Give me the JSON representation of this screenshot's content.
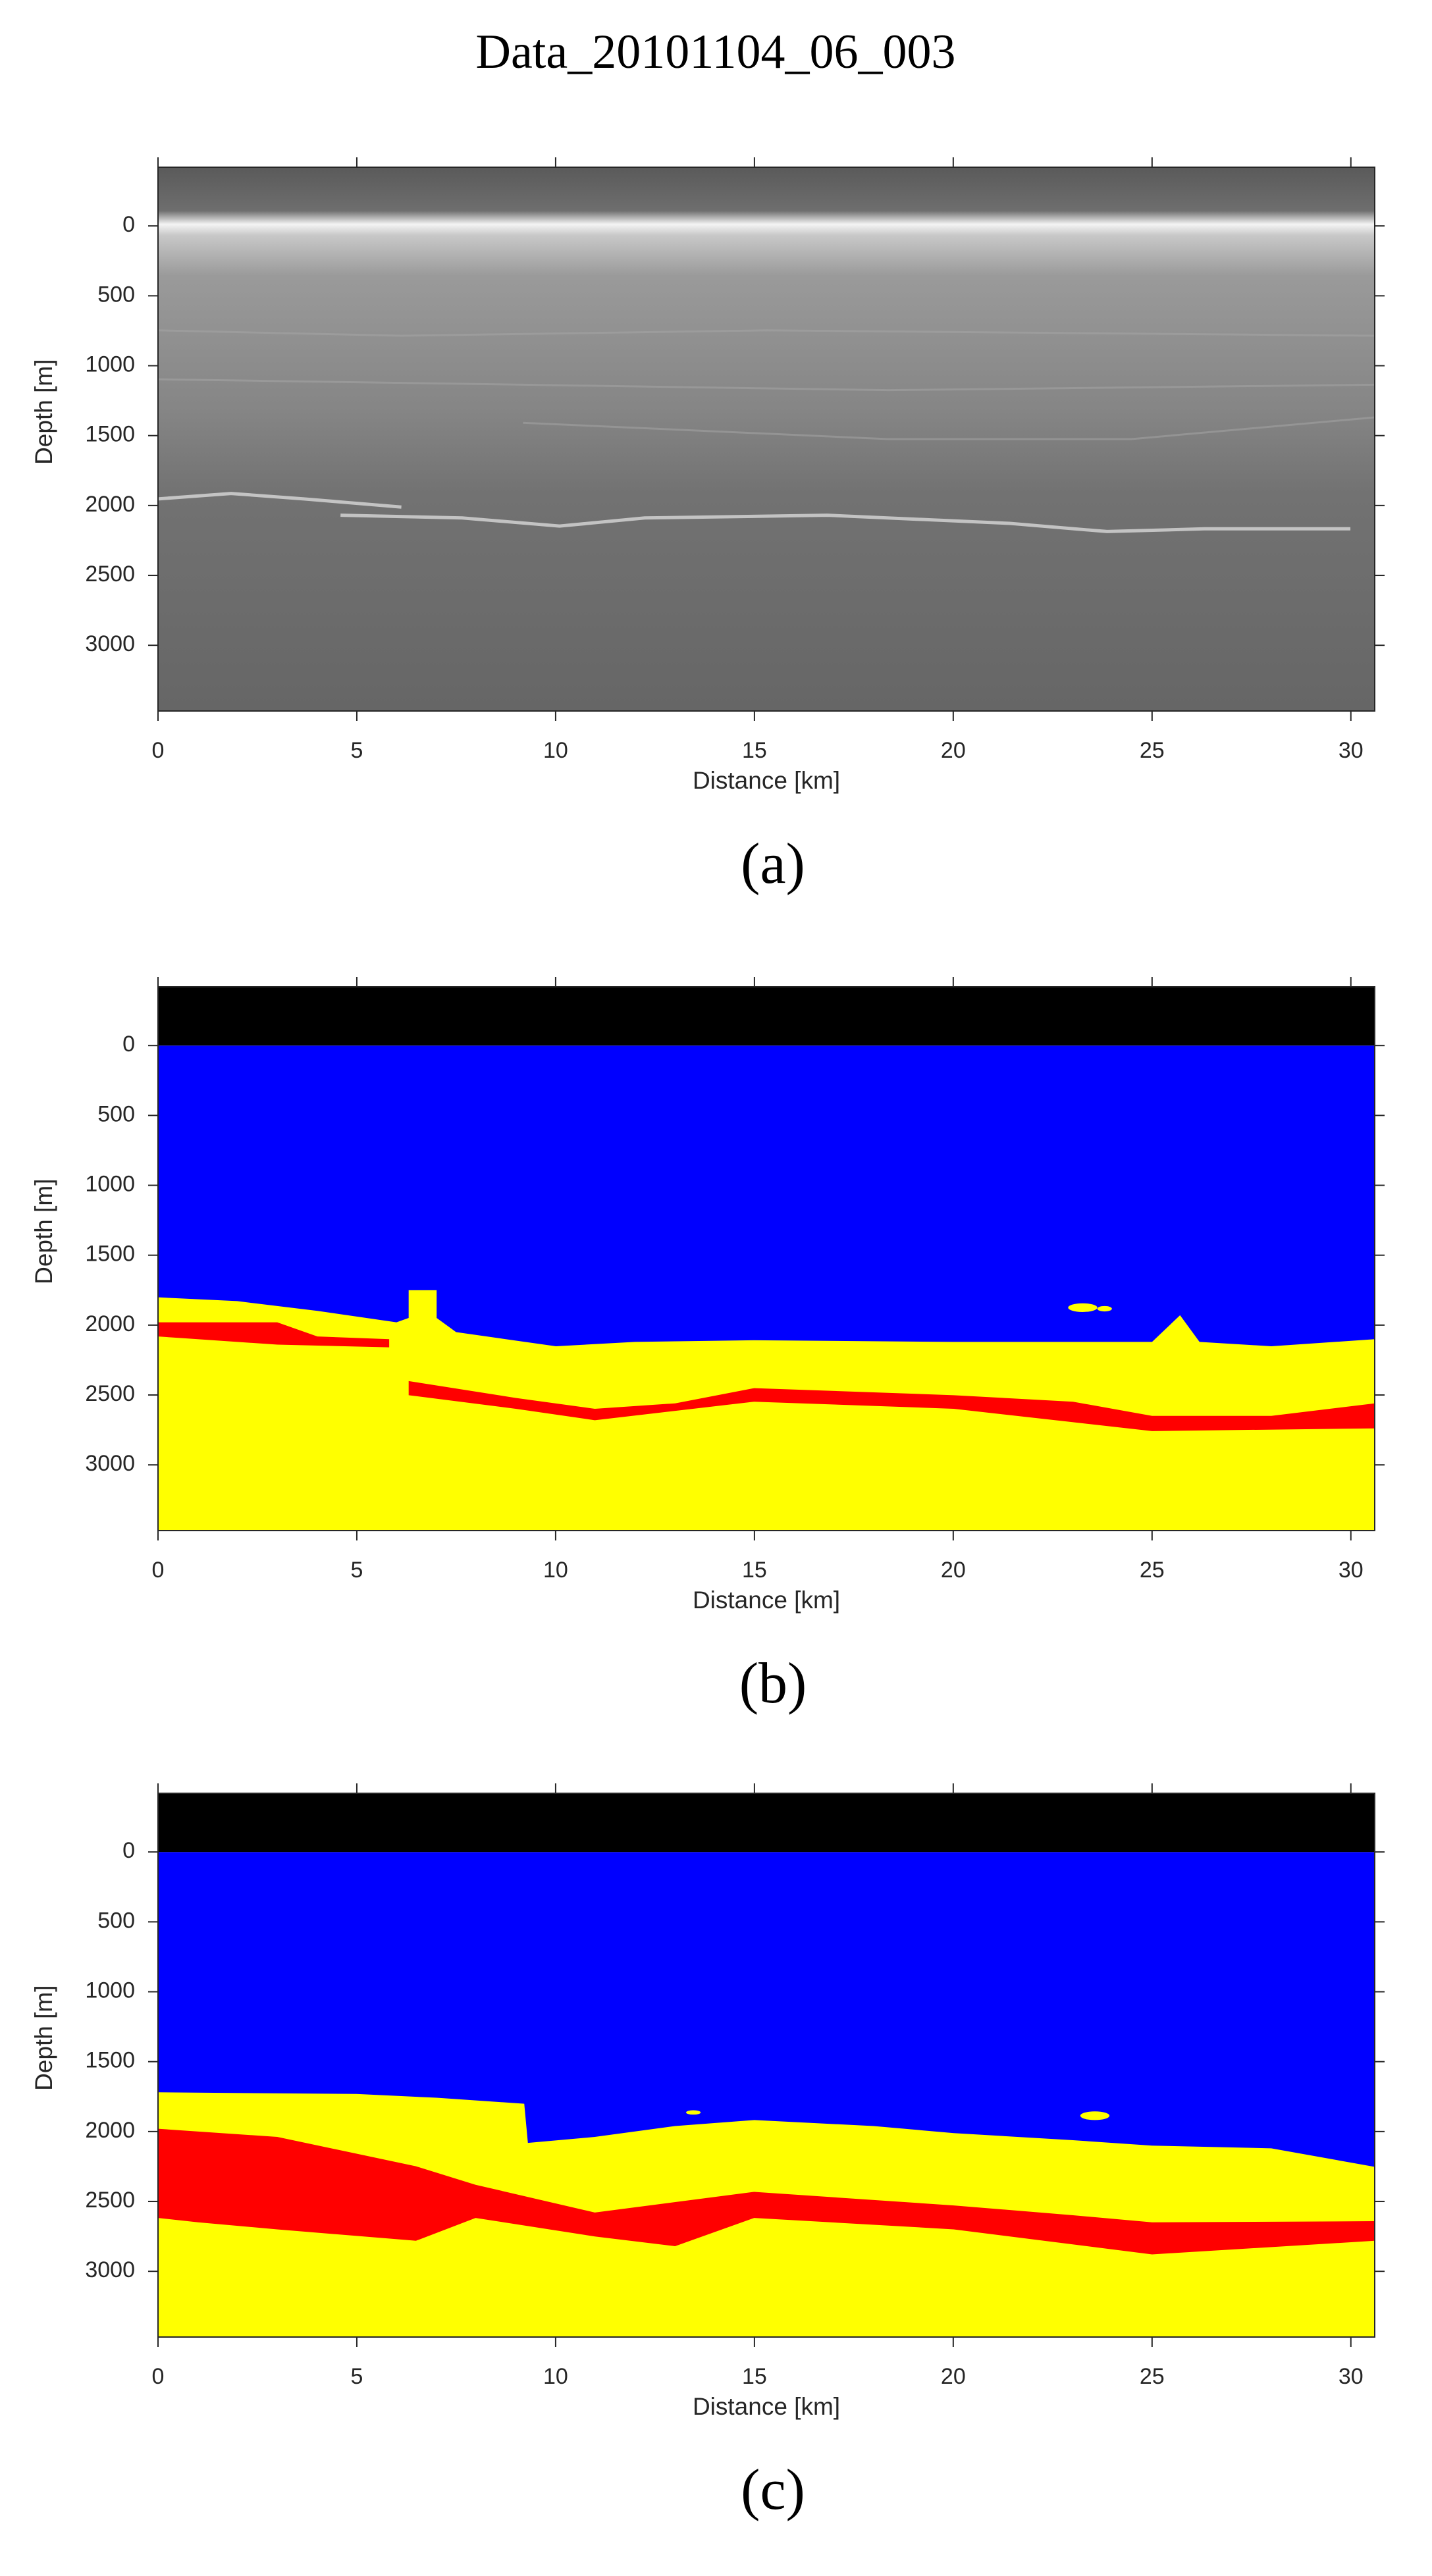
{
  "title": "Data_20101104_06_003",
  "chart_data": [
    {
      "type": "radargram",
      "caption": "(a)",
      "xlabel": "Distance [km]",
      "ylabel": "Depth [m]",
      "xlim": [
        0,
        30.6
      ],
      "ylim": [
        3470,
        -420
      ],
      "xticks": [
        0,
        5,
        10,
        15,
        20,
        25,
        30
      ],
      "yticks": [
        0,
        500,
        1000,
        1500,
        2000,
        2500,
        3000
      ]
    },
    {
      "type": "segmentation",
      "caption": "(b)",
      "xlabel": "Distance [km]",
      "ylabel": "Depth [m]",
      "xlim": [
        0,
        30.6
      ],
      "ylim": [
        3470,
        -420
      ],
      "xticks": [
        0,
        5,
        10,
        15,
        20,
        25,
        30
      ],
      "yticks": [
        0,
        500,
        1000,
        1500,
        2000,
        2500,
        3000
      ]
    },
    {
      "type": "segmentation",
      "caption": "(c)",
      "xlabel": "Distance [km]",
      "ylabel": "Depth [m]",
      "xlim": [
        0,
        30.6
      ],
      "ylim": [
        3470,
        -420
      ],
      "xticks": [
        0,
        5,
        10,
        15,
        20,
        25,
        30
      ],
      "yticks": [
        0,
        500,
        1000,
        1500,
        2000,
        2500,
        3000
      ]
    }
  ]
}
